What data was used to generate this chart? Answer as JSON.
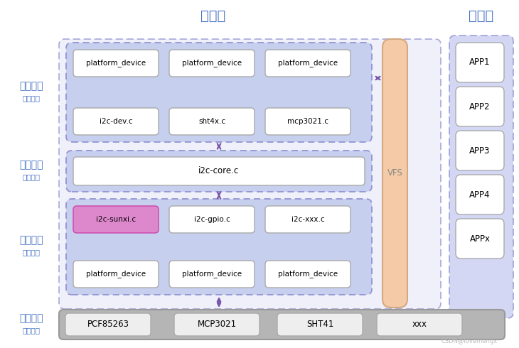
{
  "title_neike": "内核层",
  "title_yingyong": "应用层",
  "label_shebei": "设备驱动",
  "label_shebei2": "外设驱动",
  "label_hexin": "核心框架",
  "label_hexin2": "抽象接口",
  "label_shipei": "适配器层",
  "label_shipei2": "真正通信",
  "label_yingjian": "硬件外设",
  "label_yingjian2": "外设芯片",
  "color_bg": "#ffffff",
  "color_blue_title": "#4472C4",
  "color_dashed_outer": "#8888cc",
  "color_section_bg": "#c0caee",
  "color_box_bg": "#ffffff",
  "color_vfs_bg": "#f5cba7",
  "color_vfs_stroke": "#d4a880",
  "color_app_outer_bg": "#b8c0e8",
  "color_hw_bg": "#b0b0b0",
  "color_hw_box": "#eeeeee",
  "color_sunxi_bg": "#dd88cc",
  "color_sunxi_stroke": "#cc44aa",
  "color_arrow": "#7755aa",
  "color_left_label": "#4472C4",
  "color_watermark": "#bbbbbb",
  "watermark": "CSDN@lovemengx"
}
